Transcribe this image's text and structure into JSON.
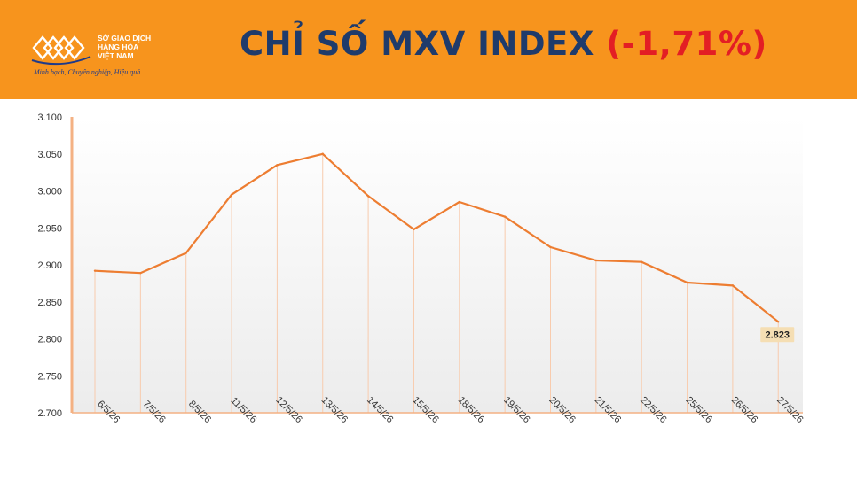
{
  "header": {
    "org_lines": [
      "SỞ GIAO DỊCH",
      "HÀNG HÓA",
      "VIỆT NAM"
    ],
    "slogan": "Minh bạch, Chuyên nghiệp, Hiệu quả",
    "title_main": "CHỈ SỐ MXV INDEX",
    "title_change": "(-1,71%)",
    "change_color": "#e31e24",
    "background_color": "#f7941d"
  },
  "chart_data": {
    "type": "line",
    "title": "CHỈ SỐ MXV INDEX (-1,71%)",
    "xlabel": "",
    "ylabel": "",
    "categories": [
      "6/5/26",
      "7/5/26",
      "8/5/26",
      "11/5/26",
      "12/5/26",
      "13/5/26",
      "14/5/26",
      "15/5/26",
      "18/5/26",
      "19/5/26",
      "20/5/26",
      "21/5/26",
      "22/5/26",
      "25/5/26",
      "26/5/26",
      "27/5/26"
    ],
    "series": [
      {
        "values": [
          2892,
          2889,
          2916,
          2995,
          3035,
          3050,
          2993,
          2948,
          2985,
          2965,
          2924,
          2906,
          2904,
          2876,
          2872,
          2823
        ],
        "color": "#ed7d31"
      }
    ],
    "ylim": [
      2700,
      3100
    ],
    "yticks": [
      2700,
      2750,
      2800,
      2850,
      2900,
      2950,
      3000,
      3050,
      3100
    ],
    "ytick_labels": [
      "2.700",
      "2.750",
      "2.800",
      "2.850",
      "2.900",
      "2.950",
      "3.000",
      "3.050",
      "3.100"
    ],
    "last_value_label": "2.823",
    "grid": false,
    "drop_lines": true,
    "legend": "none"
  }
}
